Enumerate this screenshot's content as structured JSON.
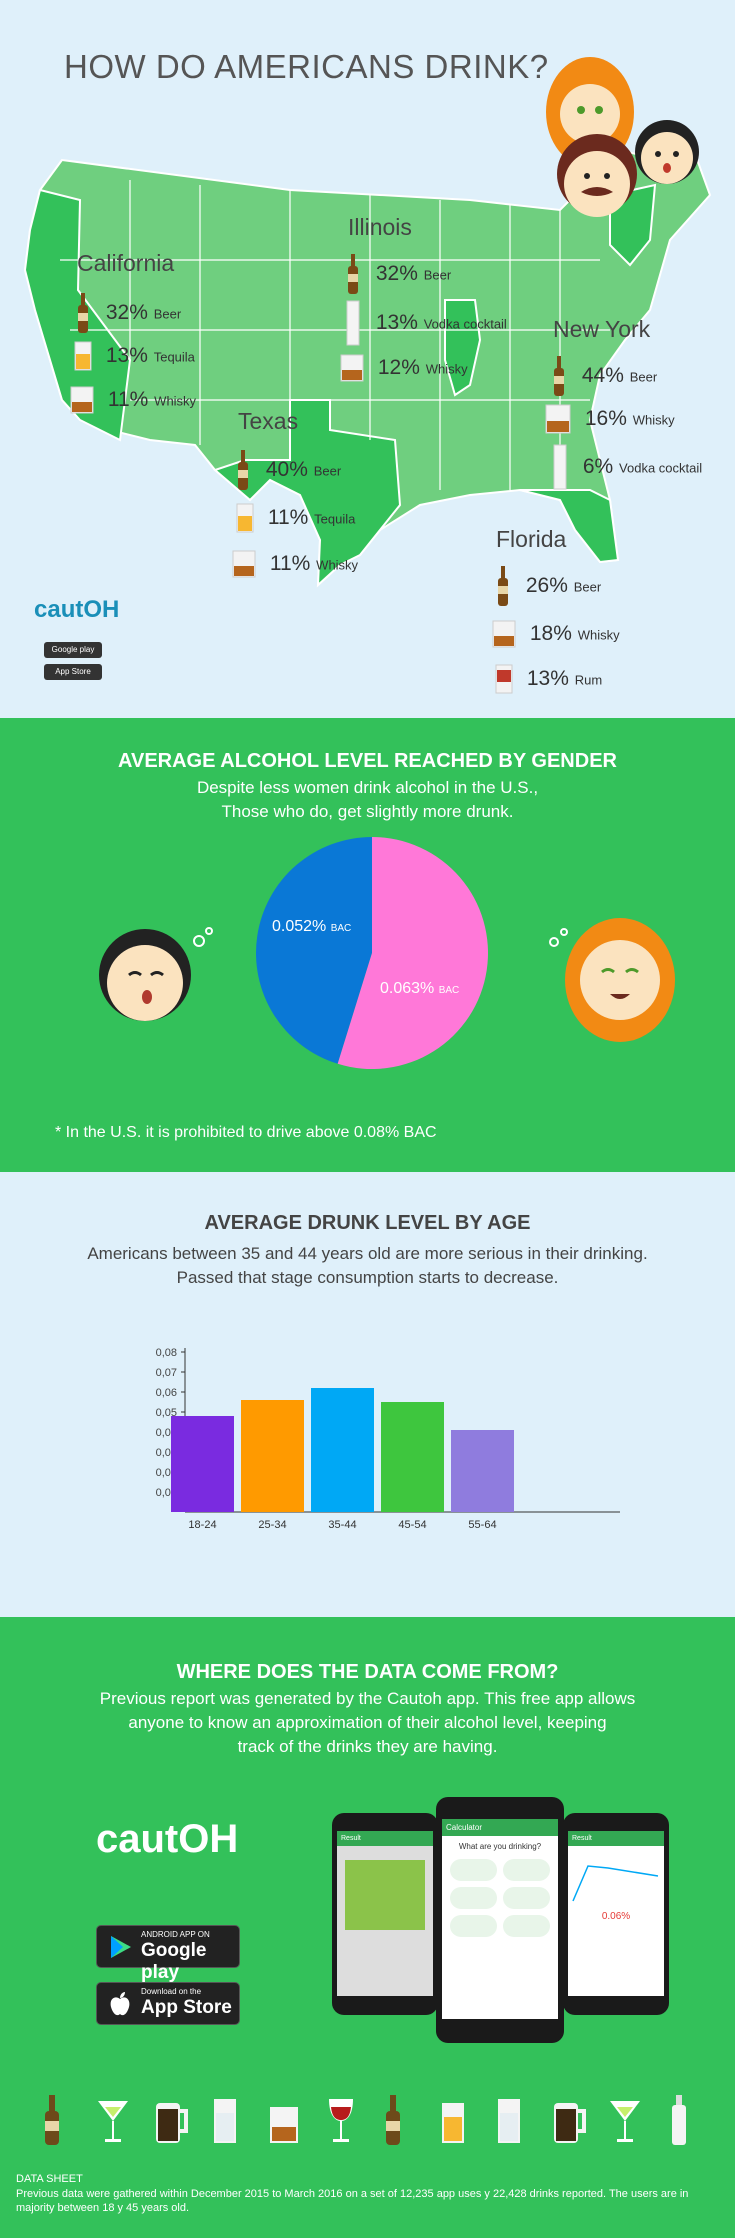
{
  "header": {
    "title": "HOW DO AMERICANS DRINK?"
  },
  "states": [
    {
      "name": "California",
      "items": [
        {
          "pct": "32%",
          "drink": "Beer",
          "icon": "beer-bottle-icon"
        },
        {
          "pct": "13%",
          "drink": "Tequila",
          "icon": "tequila-glass-icon"
        },
        {
          "pct": "11%",
          "drink": "Whisky",
          "icon": "whisky-glass-icon"
        }
      ]
    },
    {
      "name": "Illinois",
      "items": [
        {
          "pct": "32%",
          "drink": "Beer",
          "icon": "beer-bottle-icon"
        },
        {
          "pct": "13%",
          "drink": "Vodka cocktail",
          "icon": "vodka-glass-icon"
        },
        {
          "pct": "12%",
          "drink": "Whisky",
          "icon": "whisky-glass-icon"
        }
      ]
    },
    {
      "name": "New York",
      "items": [
        {
          "pct": "44%",
          "drink": "Beer",
          "icon": "beer-bottle-icon"
        },
        {
          "pct": "16%",
          "drink": "Whisky",
          "icon": "whisky-glass-icon"
        },
        {
          "pct": "6%",
          "drink": "Vodka cocktail",
          "icon": "vodka-glass-icon"
        }
      ]
    },
    {
      "name": "Texas",
      "items": [
        {
          "pct": "40%",
          "drink": "Beer",
          "icon": "beer-bottle-icon"
        },
        {
          "pct": "11%",
          "drink": "Tequila",
          "icon": "tequila-glass-icon"
        },
        {
          "pct": "11%",
          "drink": "Whisky",
          "icon": "whisky-glass-icon"
        }
      ]
    },
    {
      "name": "Florida",
      "items": [
        {
          "pct": "26%",
          "drink": "Beer",
          "icon": "beer-bottle-icon"
        },
        {
          "pct": "18%",
          "drink": "Whisky",
          "icon": "whisky-glass-icon"
        },
        {
          "pct": "13%",
          "drink": "Rum",
          "icon": "rum-glass-icon"
        }
      ]
    }
  ],
  "brand": {
    "logo": "cautOH",
    "google_play_small": "Google play",
    "app_store_small": "App Store"
  },
  "gender": {
    "title": "AVERAGE ALCOHOL LEVEL REACHED BY GENDER",
    "subtitle_line1": "Despite less women drink alcohol in the U.S.,",
    "subtitle_line2": "Those who do, get slightly more drunk.",
    "men_label": "0.052%",
    "women_label": "0.063%",
    "unit": "BAC",
    "note": "* In the U.S. it is prohibited to drive above 0.08% BAC"
  },
  "age": {
    "title": "AVERAGE DRUNK LEVEL BY AGE",
    "subtitle_line1": "Americans between 35 and 44 years old are more serious in their drinking.",
    "subtitle_line2": "Passed that stage consumption starts to decrease."
  },
  "chart_data": [
    {
      "type": "pie",
      "title": "AVERAGE ALCOHOL LEVEL REACHED BY GENDER",
      "slices": [
        {
          "name": "Men",
          "value": 0.052,
          "color": "#0a78d6"
        },
        {
          "name": "Women",
          "value": 0.063,
          "color": "#ff78d8"
        }
      ]
    },
    {
      "type": "bar",
      "title": "AVERAGE DRUNK LEVEL BY AGE",
      "categories": [
        "18-24",
        "25-34",
        "35-44",
        "45-54",
        "55-64"
      ],
      "values": [
        0.048,
        0.056,
        0.062,
        0.055,
        0.041
      ],
      "colors": [
        "#7a2be0",
        "#ff9a00",
        "#00a8f5",
        "#3ec63e",
        "#8f7cde"
      ],
      "ylim": [
        0,
        0.08
      ],
      "yticks": [
        "0,01",
        "0,02",
        "0,03",
        "0,04",
        "0,05",
        "0,06",
        "0,07",
        "0,08"
      ]
    }
  ],
  "datasource": {
    "title": "WHERE DOES THE DATA COME FROM?",
    "line1": "Previous report was generated by the Cautoh app. This free app allows",
    "line2": "anyone to know an approximation of their alcohol level, keeping",
    "line3": "track of the drinks they are having.",
    "logo": "cautOH",
    "google_top": "ANDROID APP ON",
    "google_bottom": "Google play",
    "apple_top": "Download on the",
    "apple_bottom": "App Store",
    "phone_left_title": "Result",
    "phone_center_title": "Calculator",
    "phone_center_question": "What are you drinking?",
    "phone_right_title": "Result",
    "phone_right_value": "0.06%"
  },
  "footer": {
    "sheet_title": "DATA SHEET",
    "sheet_text": "Previous data were gathered within December 2015 to March 2016 on a set of 12,235 app uses y 22,428 drinks reported. The users are in majority between 18 y 45 years old."
  },
  "drink_row": [
    "beer-bottle-icon",
    "martini-icon",
    "beer-mug-icon",
    "water-glass-icon",
    "whisky-glass-icon",
    "wine-glass-icon",
    "beer-bottle-icon",
    "tequila-glass-icon",
    "water-glass-icon",
    "beer-mug-icon",
    "martini-icon",
    "vodka-bottle-icon"
  ]
}
